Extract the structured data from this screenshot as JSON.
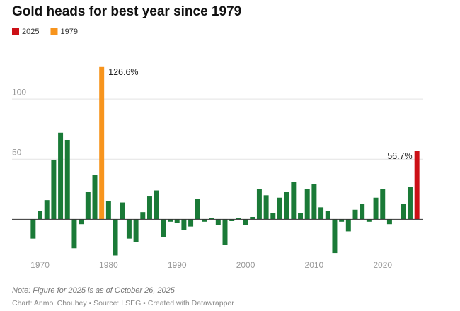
{
  "chart_data": {
    "type": "bar",
    "title": "Gold heads for best year since 1979",
    "legend": [
      {
        "name": "2025",
        "color": "#cc1016"
      },
      {
        "name": "1979",
        "color": "#f7941d"
      }
    ],
    "color": "#1a7a37",
    "x": [
      1969,
      1970,
      1971,
      1972,
      1973,
      1974,
      1975,
      1976,
      1977,
      1978,
      1979,
      1980,
      1981,
      1982,
      1983,
      1984,
      1985,
      1986,
      1987,
      1988,
      1989,
      1990,
      1991,
      1992,
      1993,
      1994,
      1995,
      1996,
      1997,
      1998,
      1999,
      2000,
      2001,
      2002,
      2003,
      2004,
      2005,
      2006,
      2007,
      2008,
      2009,
      2010,
      2011,
      2012,
      2013,
      2014,
      2015,
      2016,
      2017,
      2018,
      2019,
      2020,
      2021,
      2022,
      2023,
      2024,
      2025
    ],
    "values": [
      -16,
      7,
      16,
      49,
      72,
      66,
      -24,
      -4,
      23,
      37,
      126.6,
      15,
      -30,
      14,
      -16,
      -19,
      6,
      19,
      24,
      -15,
      -2,
      -3,
      -9,
      -6,
      17,
      -2,
      1,
      -5,
      -21,
      -1,
      1,
      -5,
      2,
      25,
      20,
      5,
      18,
      23,
      31,
      5,
      25,
      29,
      10,
      7,
      -28,
      -2,
      -10,
      8,
      13,
      -2,
      18,
      25,
      -4,
      0,
      13,
      27,
      56.7
    ],
    "value_labels": [
      null,
      null,
      null,
      null,
      null,
      null,
      null,
      null,
      null,
      null,
      "126.6%",
      null,
      null,
      null,
      null,
      null,
      null,
      null,
      null,
      null,
      null,
      null,
      null,
      null,
      null,
      null,
      null,
      null,
      null,
      null,
      null,
      null,
      null,
      null,
      null,
      null,
      null,
      null,
      null,
      null,
      null,
      null,
      null,
      null,
      null,
      null,
      null,
      null,
      null,
      null,
      null,
      null,
      null,
      null,
      null,
      null,
      "56.7%"
    ],
    "xlim": [
      1968.5,
      2025.5
    ],
    "xticks": [
      1970,
      1980,
      1990,
      2000,
      2010,
      2020
    ],
    "ylim": [
      -35,
      130
    ],
    "yticks": [
      50,
      100
    ],
    "grid": true,
    "note": "Note: Figure for 2025 is as of October 26, 2025",
    "credit": "Chart: Anmol Choubey • Source: LSEG • Created with Datawrapper"
  }
}
